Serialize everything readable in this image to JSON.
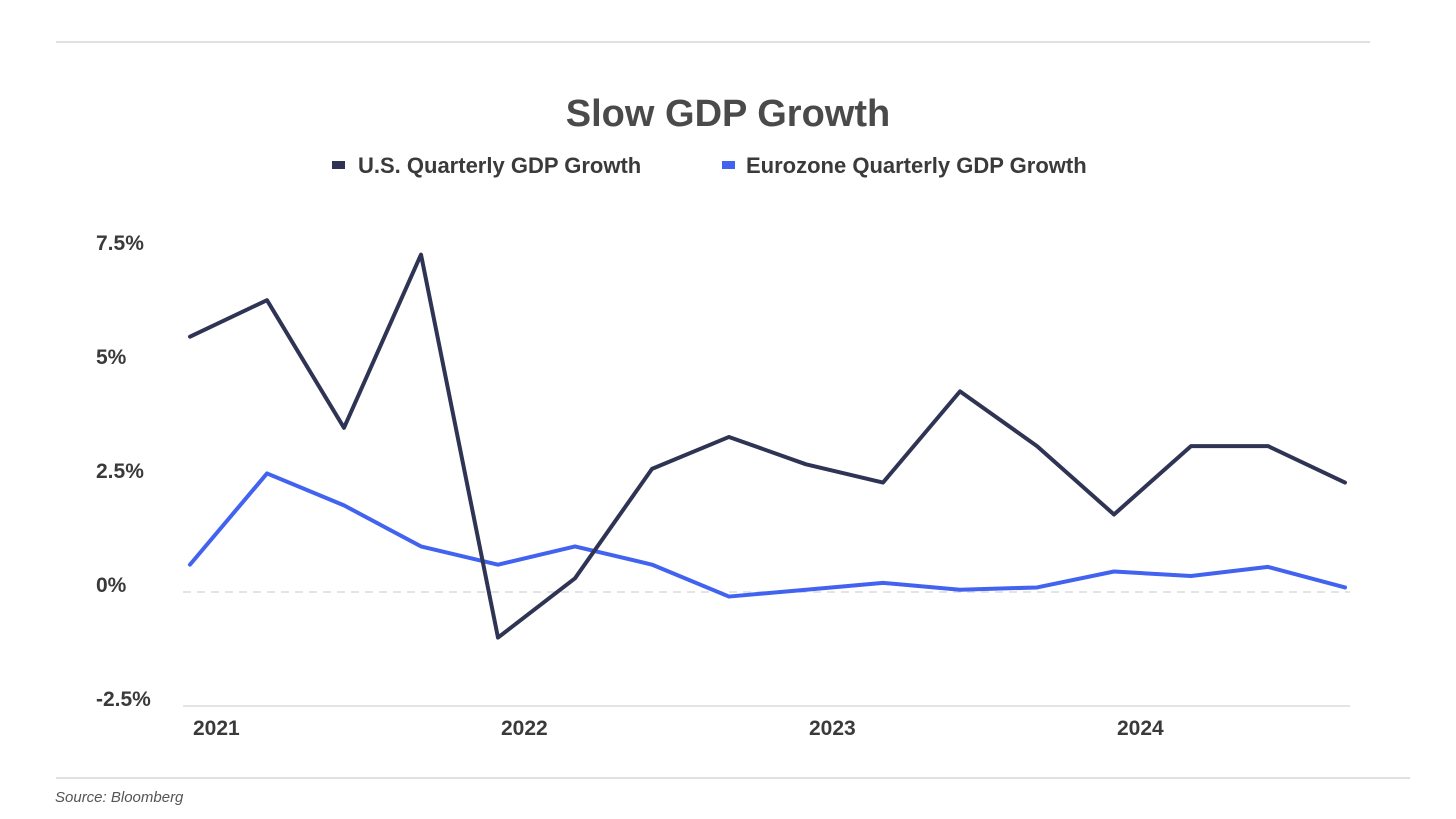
{
  "chart_data": {
    "type": "line",
    "title": "Slow GDP Growth",
    "xlabel": "",
    "ylabel": "",
    "x": [
      "2021 Q1",
      "2021 Q2",
      "2021 Q3",
      "2021 Q4",
      "2022 Q1",
      "2022 Q2",
      "2022 Q3",
      "2022 Q4",
      "2023 Q1",
      "2023 Q2",
      "2023 Q3",
      "2023 Q4",
      "2024 Q1",
      "2024 Q2",
      "2024 Q3",
      "2024 Q4"
    ],
    "x_tick_labels": [
      {
        "index": 0,
        "label": "2021"
      },
      {
        "index": 4,
        "label": "2022"
      },
      {
        "index": 8,
        "label": "2023"
      },
      {
        "index": 12,
        "label": "2024"
      }
    ],
    "y_ticks": [
      -2.5,
      0,
      2.5,
      5,
      7.5
    ],
    "y_tick_labels": [
      "-2.5%",
      "0%",
      "2.5%",
      "5%",
      "7.5%"
    ],
    "ylim": [
      -2.5,
      7.5
    ],
    "legend_position": "top-center",
    "series": [
      {
        "name": "U.S. Quarterly GDP Growth",
        "color": "#2f3454",
        "values": [
          5.6,
          6.4,
          3.6,
          7.4,
          -1.0,
          0.3,
          2.7,
          3.4,
          2.8,
          2.4,
          4.4,
          3.2,
          1.7,
          3.2,
          3.2,
          2.4
        ]
      },
      {
        "name": "Eurozone Quarterly GDP Growth",
        "color": "#4262f0",
        "values": [
          0.6,
          2.6,
          1.9,
          1.0,
          0.6,
          1.0,
          0.6,
          -0.1,
          0.05,
          0.2,
          0.05,
          0.1,
          0.45,
          0.35,
          0.55,
          0.1
        ]
      }
    ],
    "source": "Source: Bloomberg"
  }
}
